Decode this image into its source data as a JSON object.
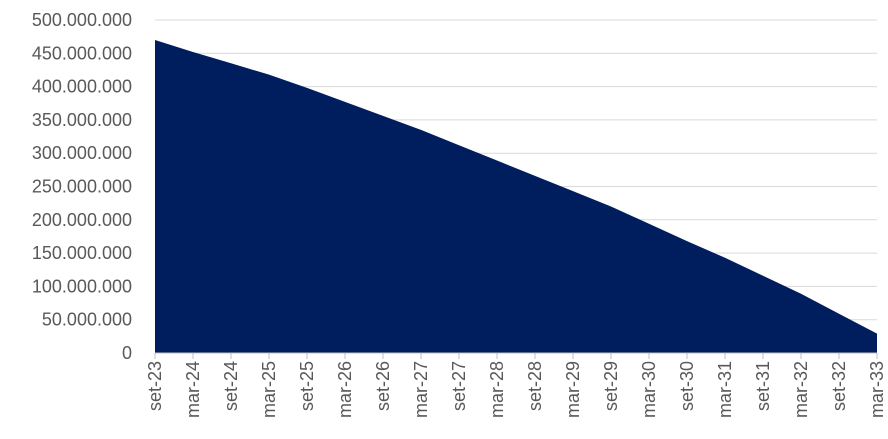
{
  "chart_data": {
    "type": "area",
    "title": "",
    "xlabel": "",
    "ylabel": "",
    "x": [
      "set-23",
      "mar-24",
      "set-24",
      "mar-25",
      "set-25",
      "mar-26",
      "set-26",
      "mar-27",
      "set-27",
      "mar-28",
      "set-28",
      "mar-29",
      "set-29",
      "mar-30",
      "set-30",
      "mar-31",
      "set-31",
      "mar-32",
      "set-32",
      "mar-33"
    ],
    "series": [
      {
        "values": [
          470000000,
          452000000,
          435000000,
          418000000,
          398000000,
          377000000,
          356000000,
          335000000,
          312000000,
          289000000,
          266000000,
          243000000,
          220000000,
          194000000,
          168000000,
          143000000,
          116000000,
          89000000,
          59000000,
          29000000
        ]
      }
    ],
    "ylim": [
      0,
      500000000
    ],
    "y_ticks": [
      0,
      50000000,
      100000000,
      150000000,
      200000000,
      250000000,
      300000000,
      350000000,
      400000000,
      450000000,
      500000000
    ],
    "y_tick_labels": [
      "0",
      "50.000.000",
      "100.000.000",
      "150.000.000",
      "200.000.000",
      "250.000.000",
      "300.000.000",
      "350.000.000",
      "400.000.000",
      "450.000.000",
      "500.000.000"
    ],
    "grid": true,
    "legend": "none",
    "colors": {
      "area": "#001D5E",
      "grid": "#D9D9D9",
      "axis": "#BFBFBF",
      "text": "#595959"
    }
  }
}
